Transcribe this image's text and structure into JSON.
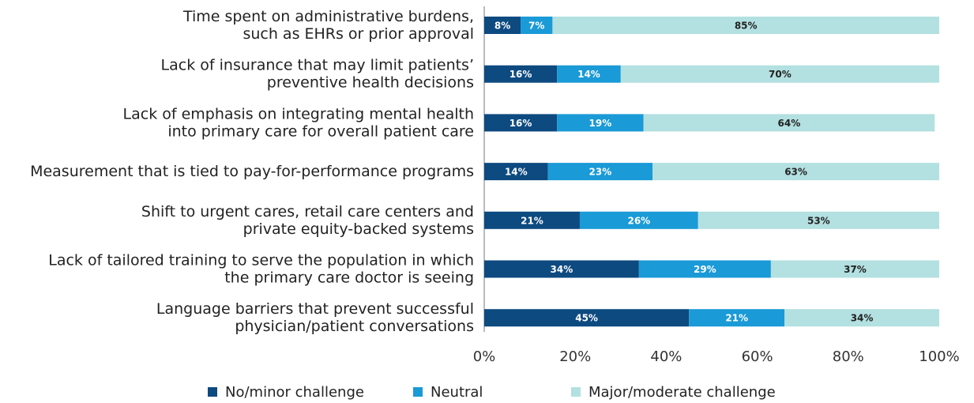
{
  "chart_data": {
    "type": "stacked-bar-horizontal",
    "categories": [
      "Time spent on administrative burdens,\nsuch as EHRs or prior approval",
      "Lack of insurance that may limit patients’\npreventive health decisions",
      "Lack of emphasis on integrating mental health\ninto primary care for overall patient care",
      "Measurement that is tied to pay-for-performance programs",
      "Shift to urgent cares, retail care centers and\nprivate equity-backed systems",
      "Lack of tailored training to serve the population in which\nthe primary care doctor is seeing",
      "Language barriers that prevent successful\nphysician/patient conversations"
    ],
    "series": [
      {
        "name": "No/minor challenge",
        "color": "#0d4a80",
        "label_color": "#ffffff",
        "values": [
          8,
          16,
          16,
          14,
          21,
          34,
          45
        ],
        "value_labels": [
          "8%",
          "16%",
          "16%",
          "14%",
          "21%",
          "34%",
          "45%"
        ]
      },
      {
        "name": "Neutral",
        "color": "#1a9ad6",
        "label_color": "#ffffff",
        "values": [
          7,
          14,
          19,
          23,
          26,
          29,
          21
        ],
        "value_labels": [
          "7%",
          "14%",
          "19%",
          "23%",
          "26%",
          "29%",
          "21%"
        ]
      },
      {
        "name": "Major/moderate challenge",
        "color": "#b3e0e0",
        "label_color": "#222222",
        "values": [
          85,
          70,
          64,
          63,
          53,
          37,
          34
        ],
        "value_labels": [
          "85%",
          "70%",
          "64%",
          "63%",
          "53%",
          "37%",
          "34%"
        ]
      }
    ],
    "xlim": [
      0,
      100
    ],
    "xticks": [
      {
        "value": 0,
        "label": "0%"
      },
      {
        "value": 20,
        "label": "20%"
      },
      {
        "value": 40,
        "label": "40%"
      },
      {
        "value": 60,
        "label": "60%"
      },
      {
        "value": 80,
        "label": "80%"
      },
      {
        "value": 100,
        "label": "100%"
      }
    ],
    "legend": "bottom"
  }
}
